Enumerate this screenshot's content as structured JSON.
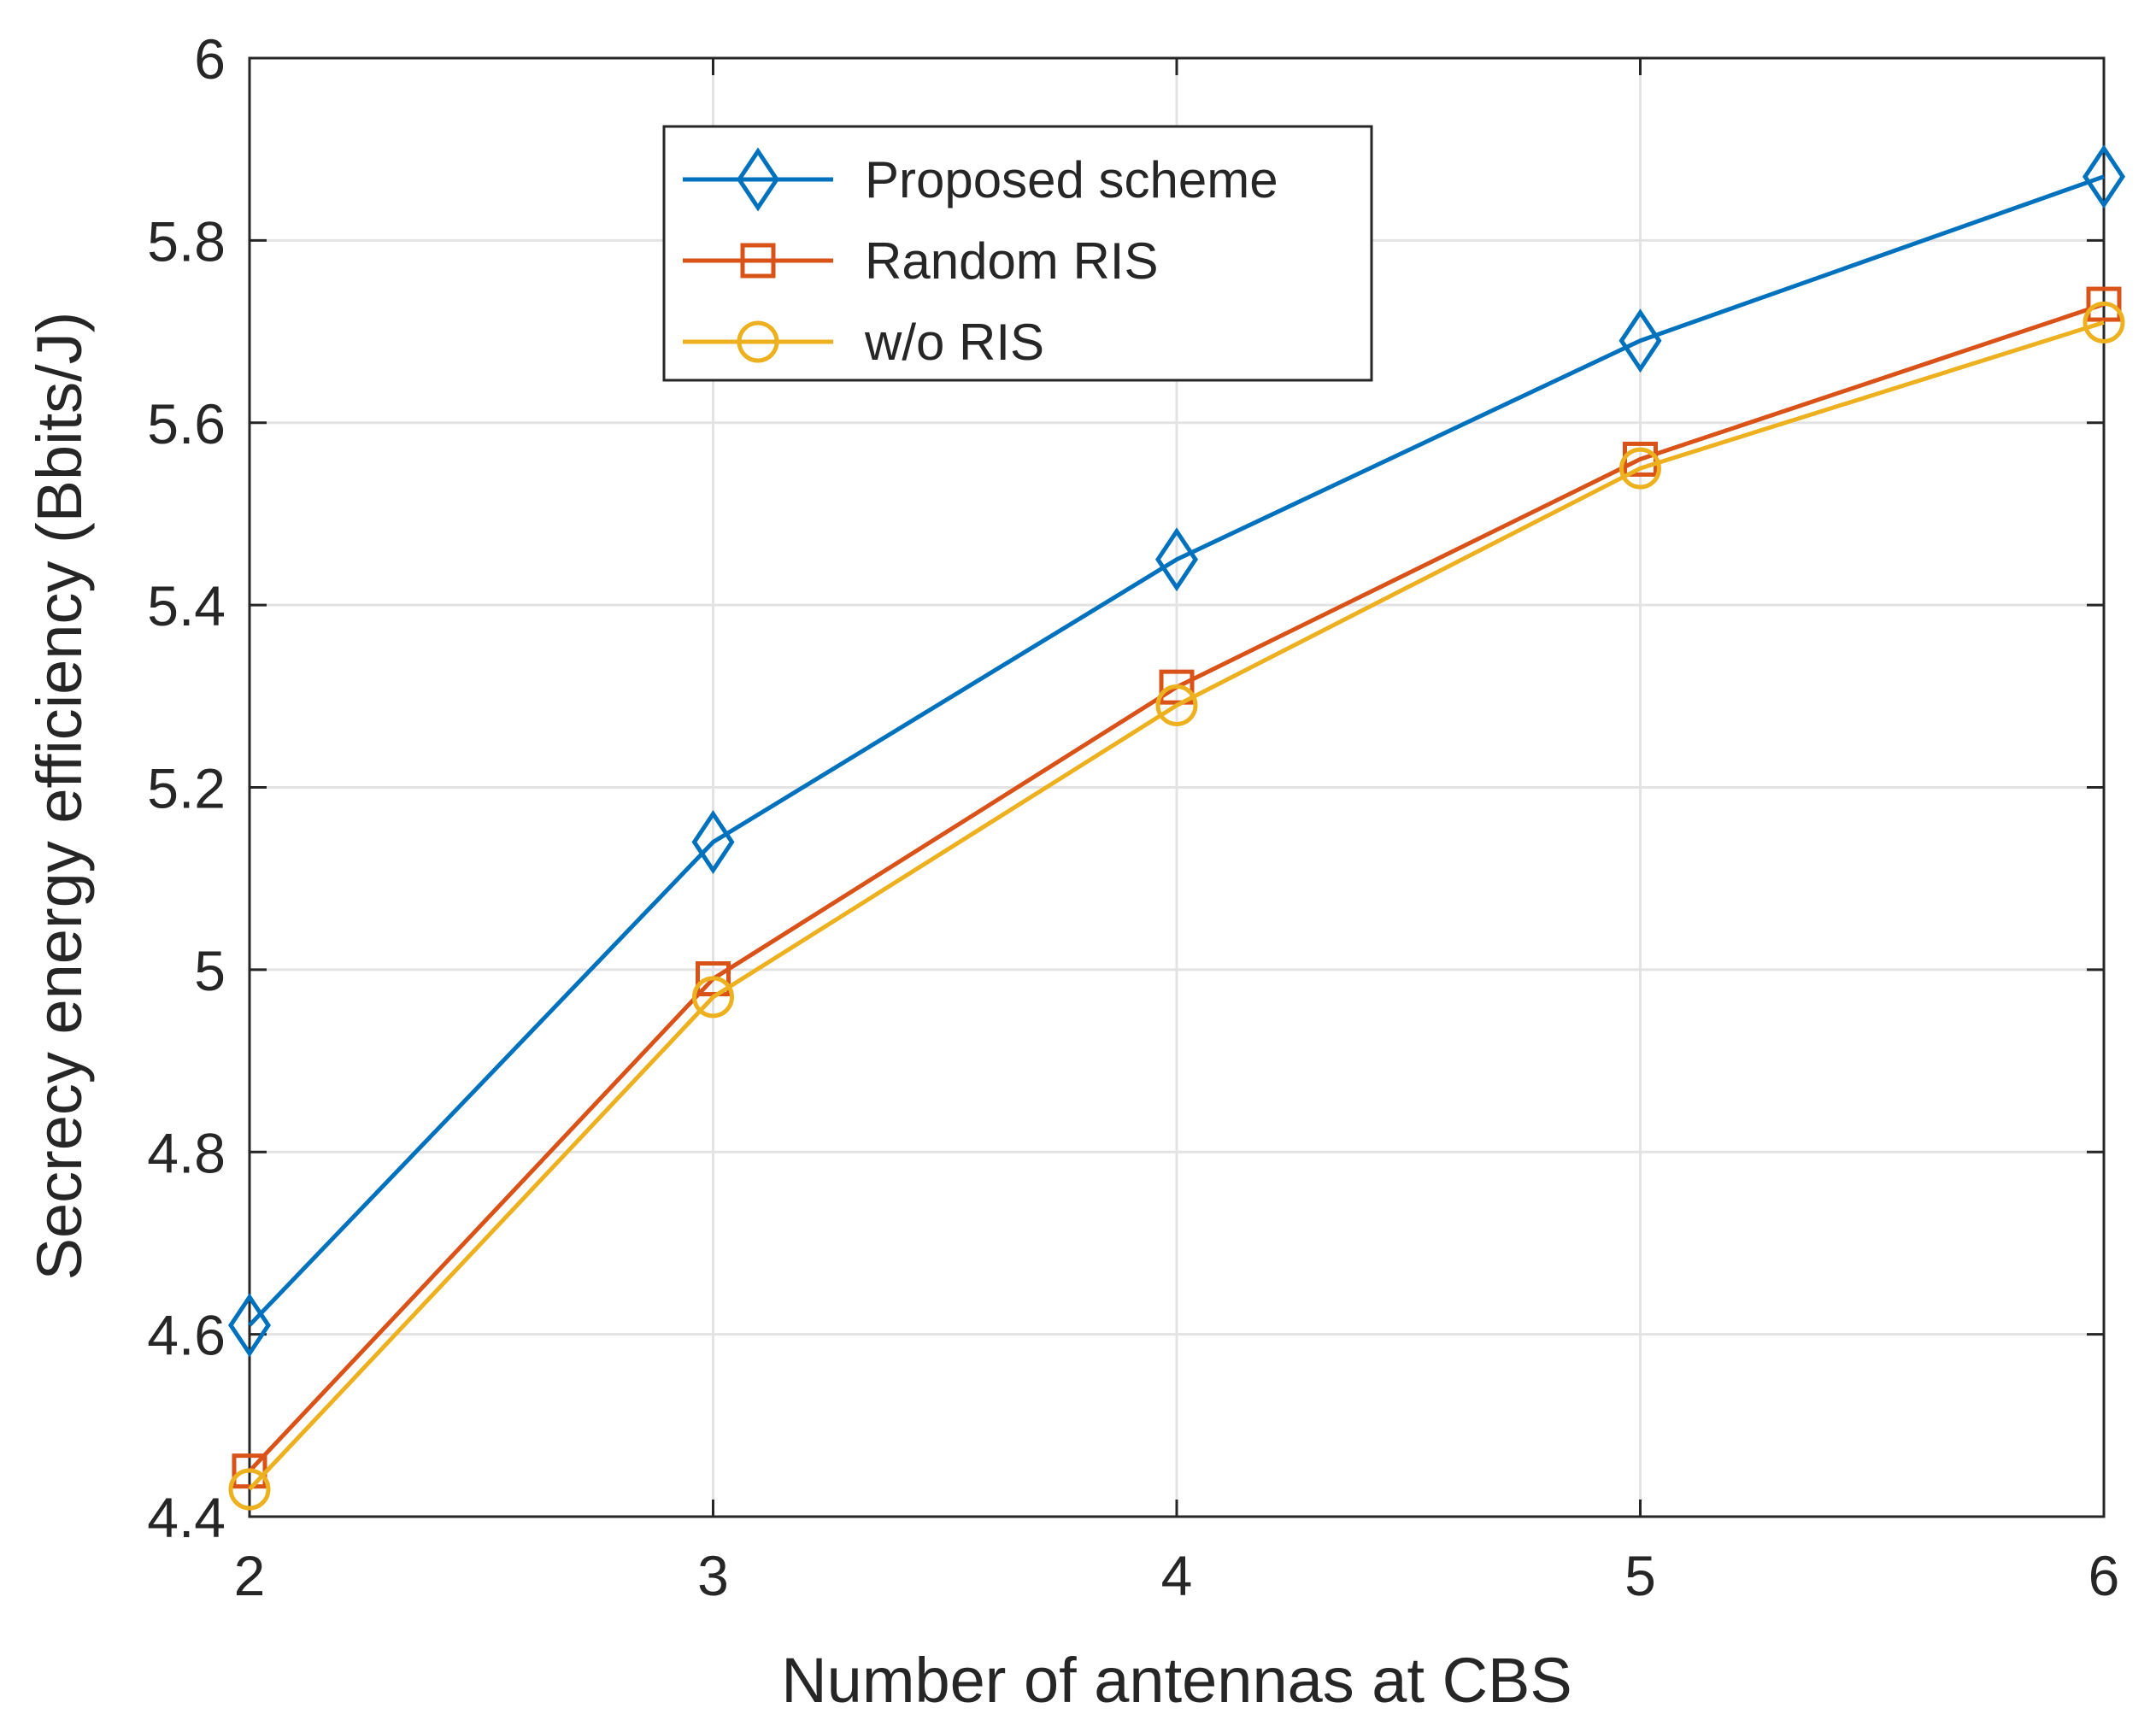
{
  "chart_data": {
    "type": "line",
    "title": "",
    "xlabel": "Number of antennas at CBS",
    "ylabel": "Secrecy energy efficiency (Bbits/J)",
    "x": [
      2,
      3,
      4,
      5,
      6
    ],
    "xlim": [
      2,
      6
    ],
    "ylim": [
      4.4,
      6
    ],
    "xticks": [
      "2",
      "3",
      "4",
      "5",
      "6"
    ],
    "yticks": [
      "4.4",
      "4.6",
      "4.8",
      "5",
      "5.2",
      "5.4",
      "5.6",
      "5.8",
      "6"
    ],
    "grid": true,
    "legend_position": "top-center",
    "series": [
      {
        "name": "Proposed scheme",
        "values": [
          4.61,
          5.14,
          5.45,
          5.69,
          5.87
        ],
        "color": "#0072BD",
        "marker": "diamond"
      },
      {
        "name": "Random RIS",
        "values": [
          4.45,
          4.99,
          5.31,
          5.56,
          5.73
        ],
        "color": "#D95319",
        "marker": "square"
      },
      {
        "name": "w/o RIS",
        "values": [
          4.43,
          4.97,
          5.29,
          5.55,
          5.71
        ],
        "color": "#EDB120",
        "marker": "circle"
      }
    ]
  }
}
